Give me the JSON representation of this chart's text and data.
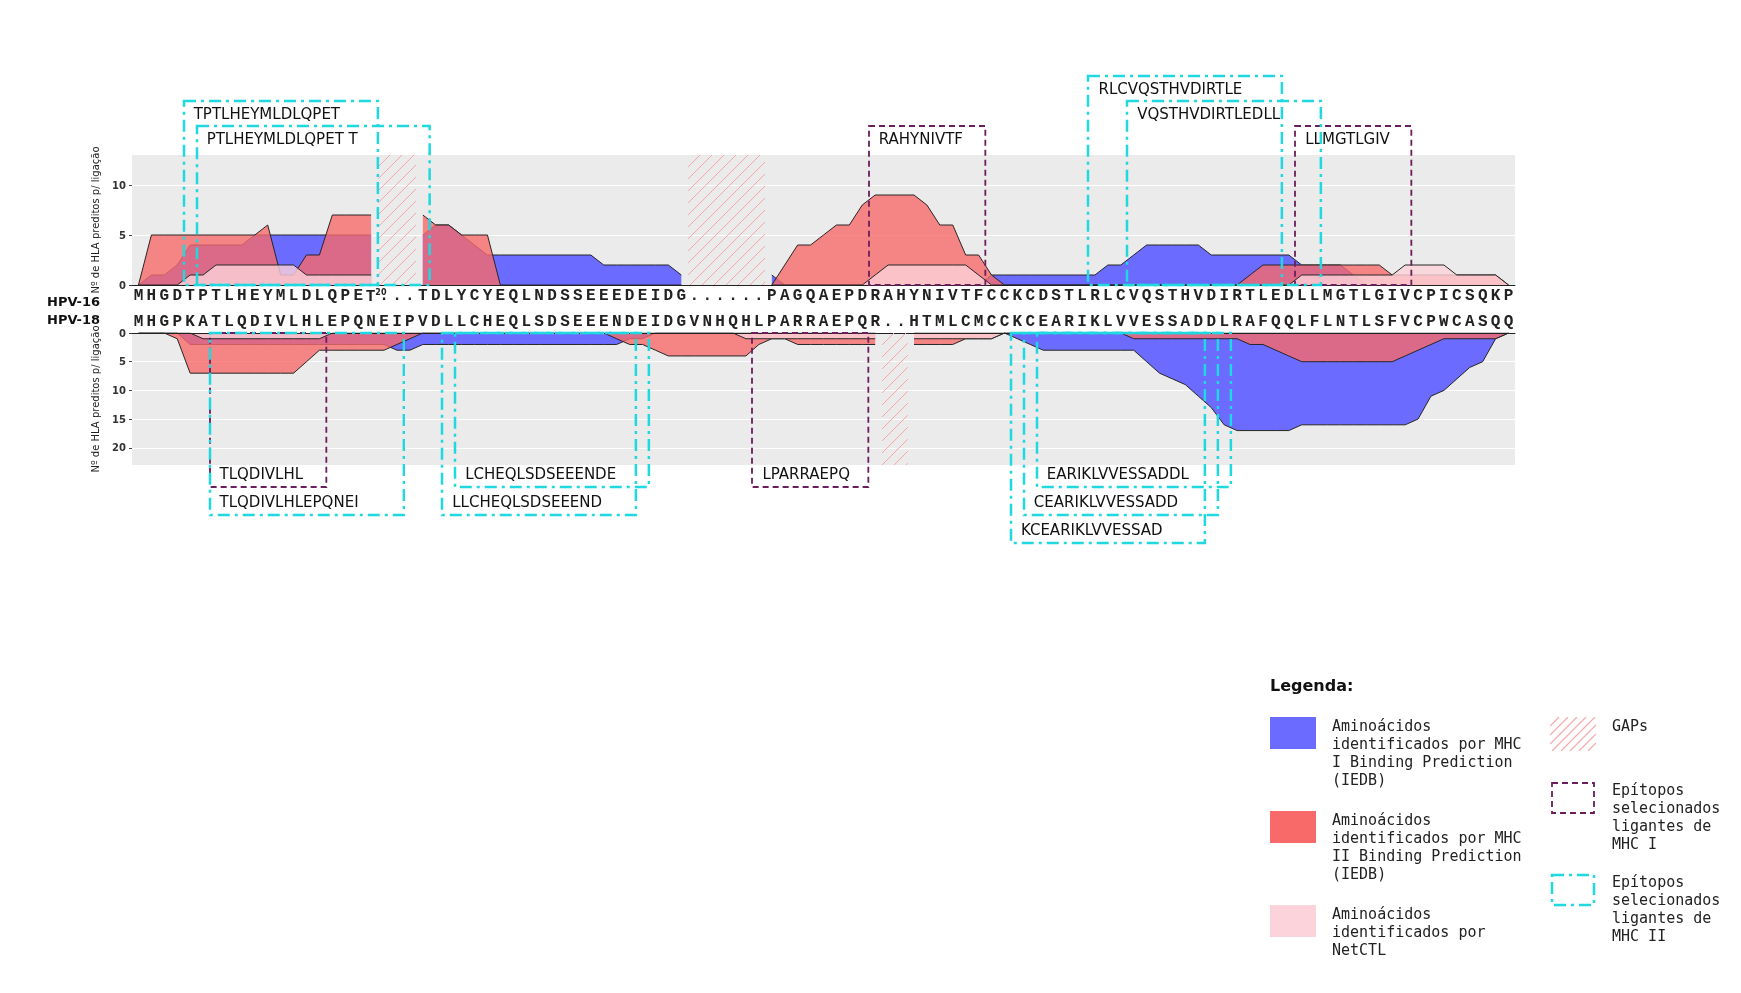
{
  "chart_data": [
    {
      "type": "area",
      "title": "HPV-16",
      "ylabel": "Nº de HLA preditos p/ ligação",
      "grid": "y",
      "categories": [
        "M",
        "H",
        "G",
        "D",
        "T",
        "P",
        "T",
        "L",
        "H",
        "E",
        "Y",
        "M",
        "L",
        "D",
        "L",
        "Q",
        "P",
        "E",
        "T$^{20}$",
        ".",
        ".",
        ".",
        "T",
        "D",
        "L",
        "Y",
        "C",
        "Y",
        "E",
        "Q",
        "L",
        "N",
        "D",
        "S",
        "S",
        "E",
        "E",
        "E",
        "D",
        "E",
        "I",
        "D",
        "G",
        ".",
        ".",
        ".",
        ".",
        ".",
        ".",
        "P",
        "A",
        "G",
        "Q",
        "A",
        "E",
        "P",
        "D",
        "R",
        "A",
        "H",
        "Y",
        "N",
        "I",
        "V",
        "T",
        "F",
        "C",
        "C",
        "K",
        "C",
        "D",
        "S",
        "T",
        "L",
        "R",
        "L",
        "C",
        "V",
        "Q",
        "S",
        "T",
        "H",
        "V",
        "D",
        "I",
        "R",
        "T",
        "L",
        "E",
        "D",
        "L",
        "L",
        "M",
        "G",
        "T",
        "L",
        "G",
        "I",
        "V",
        "C",
        "P",
        "I",
        "C",
        "S",
        "Q",
        "K",
        "P"
      ],
      "ylim": [
        0,
        13
      ],
      "yticks": [
        0,
        5,
        10
      ],
      "series": [
        {
          "color": "#6b6bff",
          "values": [
            0,
            1,
            1,
            2,
            4,
            4,
            4,
            4,
            4,
            5,
            5,
            5,
            5,
            5,
            5,
            5,
            5,
            5,
            5,
            null,
            null,
            null,
            5,
            6,
            6,
            5,
            4,
            3,
            3,
            3,
            3,
            3,
            3,
            3,
            3,
            3,
            2,
            2,
            2,
            2,
            2,
            2,
            1,
            null,
            null,
            null,
            null,
            null,
            null,
            1,
            0,
            0,
            0,
            0,
            0,
            0,
            0,
            0,
            0,
            0,
            0,
            0,
            0,
            0,
            0,
            0,
            1,
            1,
            1,
            1,
            1,
            1,
            1,
            1,
            1,
            2,
            2,
            3,
            4,
            4,
            4,
            4,
            4,
            3,
            3,
            3,
            3,
            3,
            3,
            3,
            2,
            2,
            2,
            2,
            1,
            0,
            0,
            0,
            0,
            0,
            0,
            0,
            0,
            0,
            0,
            0,
            0
          ]
        },
        {
          "color": "#f86a6a",
          "values": [
            0,
            5,
            5,
            5,
            5,
            5,
            5,
            5,
            5,
            5,
            6,
            1,
            1,
            3,
            3,
            7,
            7,
            7,
            7,
            null,
            null,
            null,
            7,
            6,
            6,
            5,
            5,
            5,
            0,
            0,
            0,
            0,
            0,
            0,
            0,
            0,
            0,
            0,
            0,
            0,
            0,
            0,
            0,
            null,
            null,
            null,
            null,
            null,
            null,
            0,
            2,
            4,
            4,
            5,
            6,
            6,
            8,
            9,
            9,
            9,
            9,
            8,
            6,
            6,
            3,
            3,
            1,
            0,
            0,
            0,
            0,
            0,
            0,
            0,
            0,
            0,
            0,
            0,
            0,
            0,
            0,
            0,
            0,
            0,
            0,
            0,
            1,
            2,
            2,
            2,
            2,
            2,
            2,
            2,
            2,
            2,
            2,
            1,
            1,
            1,
            1,
            1,
            1,
            1,
            1,
            1,
            0
          ]
        },
        {
          "color": "#fcd3da",
          "values": [
            0,
            0,
            0,
            0,
            1,
            1,
            2,
            2,
            2,
            2,
            2,
            2,
            2,
            1,
            1,
            1,
            1,
            1,
            1,
            null,
            null,
            null,
            null,
            null,
            null,
            null,
            null,
            null,
            null,
            null,
            null,
            null,
            null,
            null,
            null,
            null,
            null,
            null,
            null,
            null,
            null,
            null,
            null,
            null,
            null,
            null,
            null,
            null,
            null,
            0,
            0,
            0,
            0,
            0,
            0,
            0,
            0,
            1,
            2,
            2,
            2,
            2,
            2,
            2,
            2,
            1,
            0,
            0,
            0,
            0,
            0,
            0,
            0,
            0,
            0,
            0,
            0,
            0,
            0,
            0,
            0,
            0,
            0,
            0,
            0,
            0,
            0,
            0,
            0,
            0,
            1,
            1,
            1,
            1,
            1,
            1,
            1,
            1,
            2,
            2,
            2,
            2,
            1,
            1,
            1,
            1,
            0
          ]
        }
      ],
      "annotations": [
        "RAHYNIVTF",
        "LLMGTLGIV",
        "PTLHEYMLDLQPET T",
        "VQSTHVDIRTLEDLL",
        "TPTLHEYMLDLQPET",
        "RLCVQSTHVDIRTLE"
      ]
    },
    {
      "type": "area",
      "title": "HPV-18",
      "ylabel": "Nº de HLA preditos p/ ligação",
      "grid": "y",
      "legend": "bottom right",
      "legend_title": "Legenda:",
      "annotations": [
        "GAPs",
        "Epítopos selecionados ligantes de MHC I",
        "Epítopos selecionados ligantes de MHC II",
        "TLQDIVLHL",
        "LPARRAEPQ",
        "EARIKLVVESSADDL",
        "TLQDIVLHLEPQNEI",
        "CEARIKLVVESSADD",
        "LCHEQLSDSEEENDE",
        "KCEARIKLVVESSAD",
        "LLCHEQLSDSEEEND"
      ],
      "categories": [
        "M",
        "H",
        "G",
        "P",
        "K",
        "A",
        "T",
        "L",
        "Q",
        "D",
        "I",
        "V",
        "L",
        "H",
        "L",
        "E",
        "P",
        "Q",
        "N",
        "E",
        "I",
        "P",
        "V",
        "D",
        "L",
        "L",
        "C",
        "H",
        "E",
        "Q",
        "L",
        "S",
        "D",
        "S",
        "E",
        "E",
        "E",
        "N",
        "D",
        "E",
        "I",
        "D",
        "G",
        "V",
        "N",
        "H",
        "Q",
        "H",
        "L",
        "P",
        "A",
        "R",
        "R",
        "A",
        "E",
        "P",
        "Q",
        "R",
        ".",
        ".",
        "H",
        "T",
        "M",
        "L",
        "C",
        "M",
        "C",
        "C",
        "K",
        "C",
        "E",
        "A",
        "R",
        "I",
        "K",
        "L",
        "V",
        "V",
        "E",
        "S",
        "S",
        "A",
        "D",
        "D",
        "L",
        "R",
        "A",
        "F",
        "Q",
        "Q",
        "L",
        "F",
        "L",
        "N",
        "T",
        "L",
        "S",
        "F",
        "V",
        "C",
        "P",
        "W",
        "C",
        "A",
        "S",
        "Q",
        "Q"
      ],
      "ylim": [
        23,
        0
      ],
      "yticks": [
        0,
        5,
        10,
        15,
        20
      ],
      "series": [
        {
          "name": "Aminoácidos identificados por MHC I Binding Prediction (IEDB)",
          "color": "#6b6bff",
          "values": [
            0,
            0,
            0,
            0,
            2,
            2,
            2,
            2,
            2,
            2,
            2,
            2,
            2,
            2,
            2,
            2,
            2,
            2,
            2,
            2,
            3,
            3,
            2,
            2,
            2,
            2,
            2,
            2,
            2,
            2,
            2,
            2,
            2,
            2,
            2,
            2,
            2,
            2,
            1,
            1,
            0,
            0,
            0,
            0,
            0,
            0,
            0,
            0,
            0,
            0,
            0,
            0,
            0,
            0,
            0,
            0,
            0,
            0,
            null,
            null,
            0,
            0,
            0,
            0,
            0,
            0,
            0,
            0,
            1,
            2,
            3,
            3,
            3,
            3,
            3,
            3,
            3,
            3,
            5,
            7,
            8,
            9,
            11,
            13,
            16,
            17,
            17,
            17,
            17,
            17,
            16,
            16,
            16,
            16,
            16,
            16,
            16,
            16,
            16,
            15,
            11,
            10,
            8,
            6,
            5,
            1,
            0
          ]
        },
        {
          "name": "Aminoácidos identificados por MHC II Binding Prediction (IEDB)",
          "color": "#f86a6a",
          "values": [
            0,
            0,
            0,
            1,
            7,
            7,
            7,
            7,
            7,
            7,
            7,
            7,
            7,
            5,
            3,
            3,
            3,
            3,
            3,
            3,
            2,
            1,
            0,
            0,
            0,
            0,
            0,
            0,
            0,
            0,
            0,
            0,
            0,
            0,
            0,
            0,
            0,
            1,
            2,
            2,
            3,
            4,
            4,
            4,
            4,
            4,
            4,
            4,
            2,
            1,
            1,
            2,
            2,
            2,
            2,
            2,
            2,
            2,
            null,
            null,
            2,
            2,
            2,
            2,
            1,
            1,
            1,
            0,
            0,
            0,
            0,
            0,
            0,
            0,
            0,
            0,
            0,
            1,
            1,
            1,
            1,
            1,
            1,
            1,
            1,
            1,
            2,
            2,
            3,
            4,
            5,
            5,
            5,
            5,
            5,
            5,
            5,
            5,
            4,
            3,
            2,
            1,
            1,
            1,
            1,
            1,
            0
          ]
        },
        {
          "name": "Aminoácidos identificados por NetCTL",
          "color": "#fcd3da",
          "values": [
            0,
            0,
            0,
            0,
            0,
            1,
            1,
            1,
            1,
            1,
            1,
            1,
            1,
            1,
            1,
            0,
            0,
            0,
            0,
            0,
            0,
            0,
            0,
            0,
            0,
            0,
            0,
            0,
            0,
            0,
            0,
            0,
            0,
            0,
            0,
            0,
            0,
            0,
            0,
            0,
            0,
            0,
            0,
            0,
            0,
            0,
            0,
            1,
            1,
            1,
            1,
            1,
            1,
            1,
            1,
            1,
            1,
            1,
            null,
            null,
            1,
            1,
            1,
            1,
            1,
            1,
            1,
            0,
            0,
            0,
            0,
            0,
            0,
            0,
            0,
            0,
            0,
            0,
            0,
            0,
            0,
            0,
            0,
            0,
            0,
            0,
            0,
            0,
            0,
            0,
            0,
            0,
            0,
            0,
            0,
            0,
            0,
            0,
            0,
            0,
            0,
            0,
            0,
            0,
            0,
            0,
            0
          ]
        }
      ],
      "stacked": false
    }
  ]
}
